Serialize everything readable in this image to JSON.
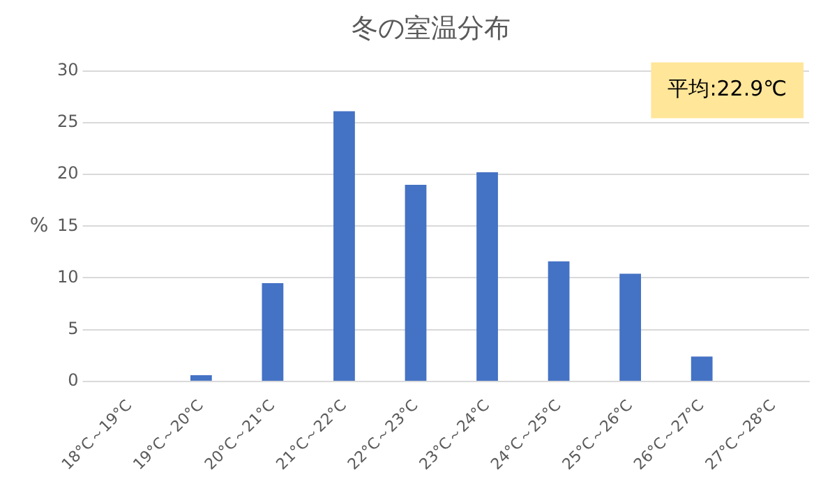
{
  "chart_data": {
    "type": "bar",
    "title": "冬の室温分布",
    "ylabel": "%",
    "categories": [
      "18°C～19°C",
      "19°C～20°C",
      "20°C～21°C",
      "21°C～22°C",
      "22°C～23°C",
      "23°C～24°C",
      "24°C～25°C",
      "25°C～26°C",
      "26°C～27°C",
      "27°C～28°C"
    ],
    "values": [
      0,
      0.6,
      9.5,
      26.1,
      19.0,
      20.2,
      11.6,
      10.4,
      2.4,
      0
    ],
    "color": "#4472c4",
    "ylim": [
      0,
      30
    ],
    "yticks": [
      0,
      5,
      10,
      15,
      20,
      25,
      30
    ],
    "grid": "y",
    "annotations": [
      "平均:22.9℃"
    ]
  }
}
